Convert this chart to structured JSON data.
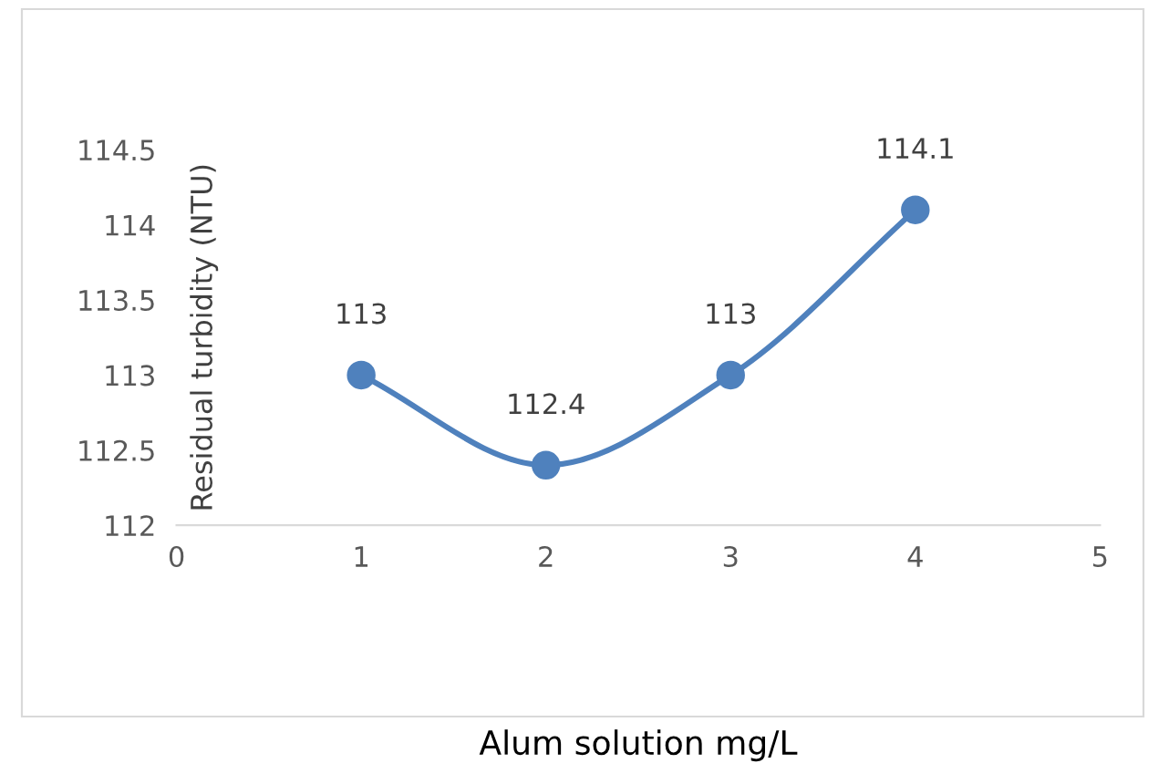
{
  "chart_data": {
    "type": "line",
    "xlabel": "Alum solution mg/L",
    "ylabel": "Residual turbidity (NTU)",
    "x": [
      1,
      2,
      3,
      4
    ],
    "series": [
      {
        "color": "#4f81bd",
        "values": [
          113,
          112.4,
          113,
          114.1
        ]
      }
    ],
    "xlim": [
      0,
      5
    ],
    "xticks": [
      0,
      1,
      2,
      3,
      4,
      5
    ],
    "ylim": [
      112,
      114.5
    ],
    "yticks": [
      112,
      112.5,
      113,
      113.5,
      114,
      114.5
    ],
    "data_labels": true,
    "marker": "circle",
    "line_style": "solid",
    "grid": false,
    "legend": false
  }
}
